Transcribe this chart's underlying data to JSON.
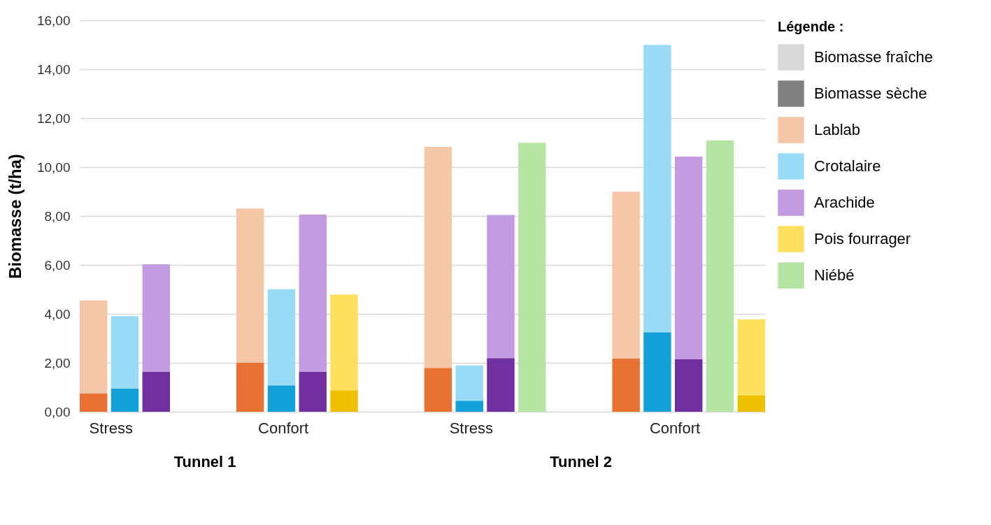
{
  "chart_data": {
    "type": "bar",
    "ylabel": "Biomasse (t/ha)",
    "legend_title": "Légende :",
    "legend": "right",
    "grid": "y",
    "stacked": true,
    "categories": [
      null,
      null,
      null,
      null,
      null,
      null,
      null,
      null,
      null,
      null,
      null,
      null,
      null,
      null,
      null,
      null,
      null,
      null,
      null,
      null,
      null,
      null
    ],
    "annotations": [
      "Stress",
      "Confort",
      "Stress",
      "Confort",
      "Tunnel 1",
      "Tunnel 2"
    ],
    "ylim": [
      0,
      16
    ],
    "yticks": [
      {
        "value": 0,
        "label": "0,00"
      },
      {
        "value": 2,
        "label": "2,00"
      },
      {
        "value": 4,
        "label": "4,00"
      },
      {
        "value": 6,
        "label": "6,00"
      },
      {
        "value": 8,
        "label": "8,00"
      },
      {
        "value": 10,
        "label": "10,00"
      },
      {
        "value": 12,
        "label": "12,00"
      },
      {
        "value": 14,
        "label": "14,00"
      },
      {
        "value": 16,
        "label": "16,00"
      }
    ],
    "series": [
      {
        "name": "Biomasse fraîche",
        "color": "#d9d9d9",
        "values": [
          null,
          null,
          null,
          null,
          null,
          null,
          null,
          null,
          null,
          null,
          null,
          null,
          null,
          null,
          null,
          null,
          null,
          null,
          null,
          null,
          null,
          null
        ]
      },
      {
        "name": "Biomasse sèche",
        "color": "#7f7f7f",
        "values": [
          null,
          null,
          null,
          null,
          null,
          null,
          null,
          null,
          null,
          null,
          null,
          null,
          null,
          null,
          null,
          null,
          null,
          null,
          null,
          null,
          null,
          null
        ]
      },
      {
        "color": "#e97132",
        "values": [
          0.74,
          null,
          null,
          null,
          null,
          2.0,
          null,
          null,
          null,
          null,
          null,
          1.79,
          null,
          null,
          null,
          null,
          null,
          2.17,
          null,
          null,
          null,
          null
        ]
      },
      {
        "name": "Lablab",
        "color": "#f5c6a8",
        "values": [
          3.81,
          null,
          null,
          null,
          null,
          6.31,
          null,
          null,
          null,
          null,
          null,
          9.04,
          null,
          null,
          null,
          null,
          null,
          6.82,
          null,
          null,
          null,
          null
        ]
      },
      {
        "color": "#139fd8",
        "values": [
          null,
          0.94,
          null,
          null,
          null,
          null,
          1.08,
          null,
          null,
          null,
          null,
          null,
          0.45,
          null,
          null,
          null,
          null,
          null,
          3.25,
          null,
          null,
          null
        ]
      },
      {
        "name": "Crotalaire",
        "color": "#99dbf7",
        "values": [
          null,
          2.97,
          null,
          null,
          null,
          null,
          3.93,
          null,
          null,
          null,
          null,
          null,
          1.44,
          null,
          null,
          null,
          null,
          null,
          11.74,
          null,
          null,
          null
        ]
      },
      {
        "color": "#7030a0",
        "values": [
          null,
          null,
          1.64,
          null,
          null,
          null,
          null,
          1.64,
          null,
          null,
          null,
          null,
          null,
          2.19,
          null,
          null,
          null,
          null,
          null,
          2.14,
          null,
          null
        ]
      },
      {
        "name": "Arachide",
        "color": "#c39be1",
        "values": [
          null,
          null,
          4.39,
          null,
          null,
          null,
          null,
          6.42,
          null,
          null,
          null,
          null,
          null,
          5.85,
          null,
          null,
          null,
          null,
          null,
          8.29,
          null,
          null
        ]
      },
      {
        "color": "#efc000",
        "values": [
          null,
          null,
          null,
          null,
          null,
          null,
          null,
          null,
          0.88,
          null,
          null,
          null,
          null,
          null,
          null,
          null,
          null,
          null,
          null,
          null,
          null,
          0.68
        ]
      },
      {
        "name": "Pois fourrager",
        "color": "#ffdf5e",
        "values": [
          null,
          null,
          null,
          null,
          null,
          null,
          null,
          null,
          3.91,
          null,
          null,
          null,
          null,
          null,
          null,
          null,
          null,
          null,
          null,
          null,
          null,
          3.1
        ]
      },
      {
        "name": "Niébé",
        "color": "#b4e5a2",
        "values": [
          null,
          null,
          null,
          null,
          null,
          null,
          null,
          null,
          null,
          null,
          null,
          null,
          null,
          null,
          10.99,
          null,
          null,
          null,
          null,
          null,
          11.09,
          null
        ]
      }
    ]
  }
}
